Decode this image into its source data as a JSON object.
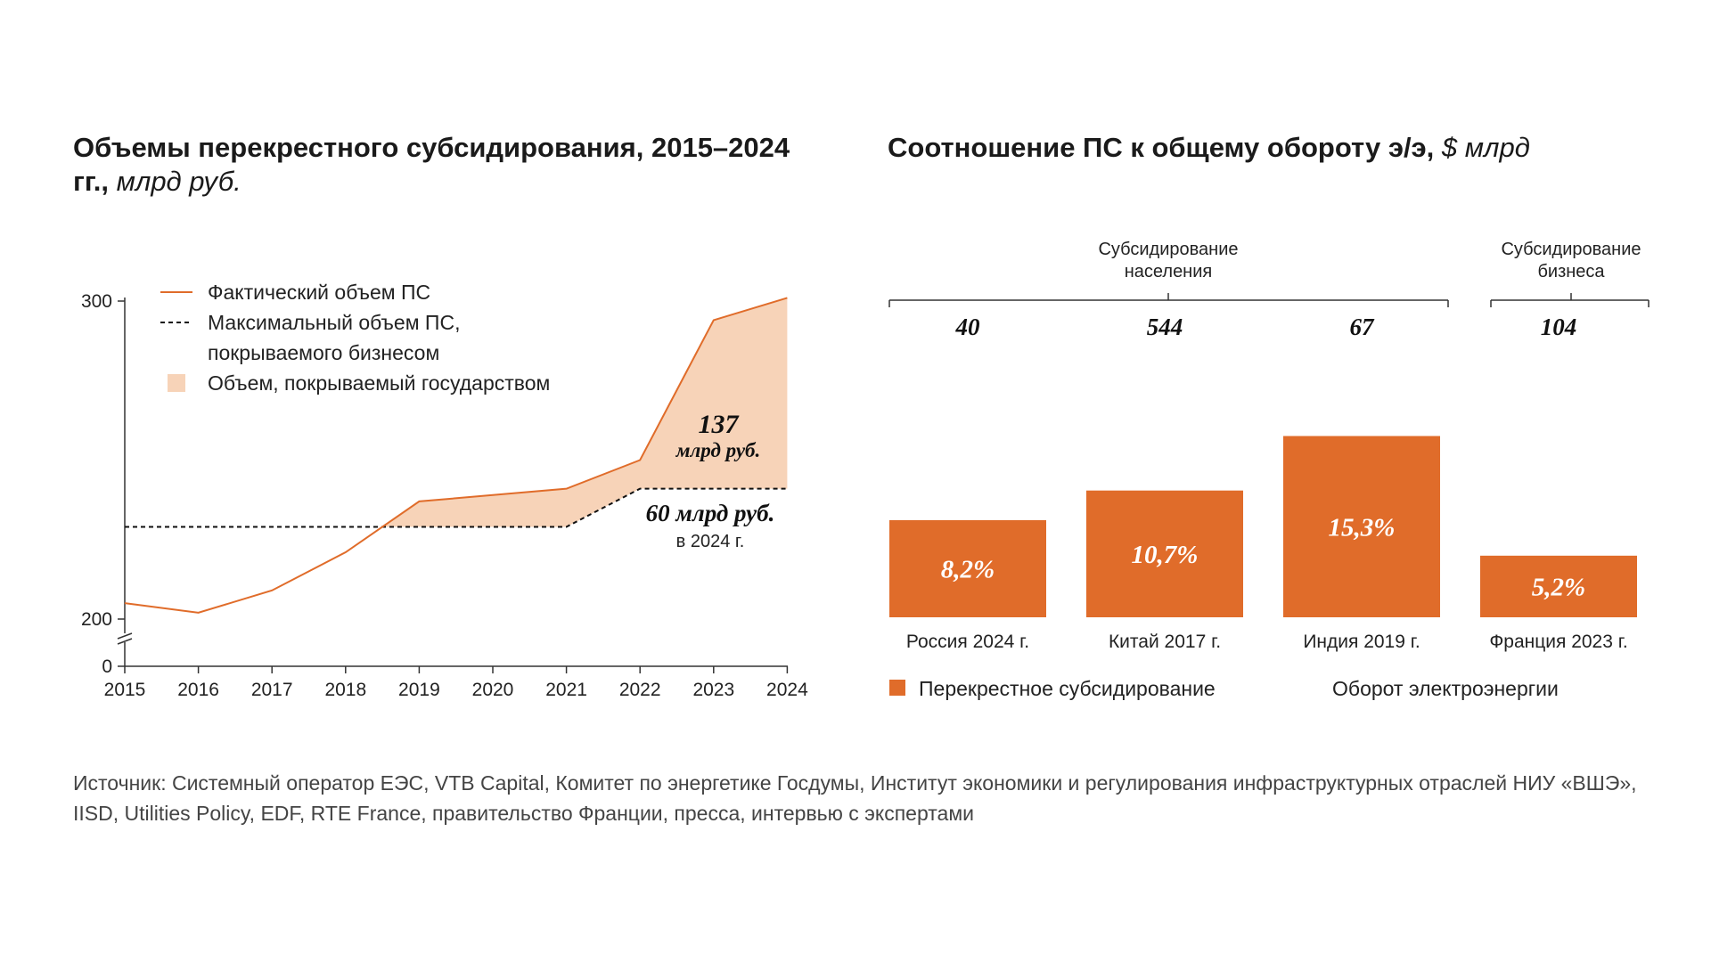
{
  "left_title": {
    "main": "Объемы перекрестного субсидирования, 2015–2024 гг.,",
    "unit": "млрд руб."
  },
  "right_title": {
    "main": "Соотношение ПС к общему обороту э/э,",
    "unit": "$ млрд"
  },
  "legend_left": {
    "actual": "Фактический объем ПС",
    "max_line1": "Максимальный объем ПС,",
    "max_line2": "покрываемого бизнесом",
    "state": "Объем, покрываемый государством"
  },
  "annotations": {
    "gap_value": "137",
    "gap_unit": "млрд руб.",
    "max_value": "60 млрд руб.",
    "max_year": "в 2024 г."
  },
  "groups": {
    "population_line1": "Субсидирование",
    "population_line2": "населения",
    "business_line1": "Субсидирование",
    "business_line2": "бизнеса"
  },
  "legend_right": {
    "cross": "Перекрестное субсидирование",
    "turnover": "Оборот электроэнергии"
  },
  "source": "Источник: Системный оператор ЕЭС, VTB Capital, Комитет по энергетике Госдумы, Институт экономики и регулирования инфраструктурных отраслей НИУ «ВШЭ», IISD, Utilities Policy, EDF, RTE France, правительство Франции, пресса, интервью с экспертами",
  "colors": {
    "accent": "#E06C2A",
    "fill": "#F7D3B8",
    "text": "#1a1a1a"
  },
  "chart_data": [
    {
      "type": "area",
      "x": [
        2015,
        2016,
        2017,
        2018,
        2019,
        2020,
        2021,
        2022,
        2023,
        2024
      ],
      "series": [
        {
          "name": "Фактический объем ПС",
          "values": [
            205,
            202,
            209,
            221,
            237,
            239,
            241,
            250,
            294,
            301
          ]
        },
        {
          "name": "Максимальный объем ПС, покрываемого бизнесом",
          "values": [
            229,
            229,
            229,
            229,
            229,
            229,
            229,
            241,
            241,
            241
          ]
        }
      ],
      "y_ticks": [
        0,
        200,
        300
      ],
      "axis_break": true,
      "ylim": [
        0,
        300
      ],
      "grid": false,
      "legend": "top-left"
    },
    {
      "type": "bar",
      "categories": [
        "Россия 2024 г.",
        "Китай 2017 г.",
        "Индия 2019 г.",
        "Франция 2023 г."
      ],
      "values": [
        8.2,
        10.7,
        15.3,
        5.2
      ],
      "value_labels": [
        "8,2%",
        "10,7%",
        "15,3%",
        "5,2%"
      ],
      "turnover_values": [
        40,
        544,
        67,
        104
      ],
      "turnover_labels": [
        "40",
        "544",
        "67",
        "104"
      ],
      "groups": [
        {
          "name": "Субсидирование населения",
          "categories": [
            "Россия 2024 г.",
            "Китай 2017 г.",
            "Индия 2019 г."
          ]
        },
        {
          "name": "Субсидирование бизнеса",
          "categories": [
            "Франция 2023 г."
          ]
        }
      ],
      "legend": "bottom"
    }
  ]
}
